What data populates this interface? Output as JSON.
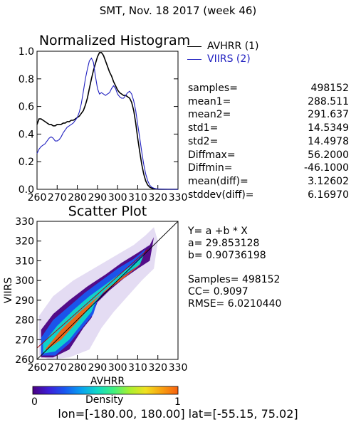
{
  "page_title": "SMT,  Nov. 18 2017 (week 46)",
  "histogram_stats": [
    {
      "label": "samples=",
      "value": "498152"
    },
    {
      "label": "mean1=",
      "value": "288.511"
    },
    {
      "label": "mean2=",
      "value": "291.637"
    },
    {
      "label": "std1=",
      "value": "14.5349"
    },
    {
      "label": "std2=",
      "value": "14.4978"
    },
    {
      "label": "Diffmax=",
      "value": "56.2000"
    },
    {
      "label": "Diffmin=",
      "value": "-46.1000"
    },
    {
      "label": "mean(diff)=",
      "value": "3.12602"
    },
    {
      "label": "stddev(diff)=",
      "value": "6.16970"
    }
  ],
  "regression": {
    "equation": "Y= a +b * X",
    "a_line": "a= 29.853128",
    "b_line": "b= 0.90736198",
    "samples_line": "Samples= 498152",
    "cc_line": "CC=  0.9097",
    "rmse_line": "RMSE= 6.0210440"
  },
  "colorbar": {
    "label": "Density",
    "min_label": "0",
    "max_label": "1",
    "colors": [
      "#4b0082",
      "#3c1fd8",
      "#1858f0",
      "#08a0f0",
      "#10d8c8",
      "#40f080",
      "#a8f030",
      "#f0e020",
      "#f8a010",
      "#f86010"
    ]
  },
  "footer": "lon=[-180.00, 180.00] lat=[-55.15, 75.02]",
  "colors": {
    "avhrr": "#000000",
    "viirs": "#2020c0"
  },
  "chart_data": [
    {
      "type": "line",
      "title": "Normalized Histogram",
      "xlim": [
        260,
        330
      ],
      "ylim": [
        0.0,
        1.0
      ],
      "xticks": [
        "260",
        "270",
        "280",
        "290",
        "300",
        "310",
        "320",
        "330"
      ],
      "yticks": [
        "0.0",
        "0.2",
        "0.4",
        "0.6",
        "0.8",
        "1.0"
      ],
      "series": [
        {
          "name": "AVHRR (1)",
          "color": "#000000",
          "x": [
            260,
            261,
            262,
            263,
            264,
            265,
            266,
            267,
            268,
            269,
            270,
            271,
            272,
            273,
            274,
            275,
            276,
            277,
            278,
            279,
            280,
            281,
            282,
            283,
            284,
            285,
            286,
            287,
            288,
            289,
            290,
            291,
            292,
            293,
            294,
            295,
            296,
            297,
            298,
            299,
            300,
            301,
            302,
            303,
            304,
            305,
            306,
            307,
            308,
            309,
            310,
            311,
            312,
            313,
            314,
            315,
            316,
            317,
            318,
            319,
            320,
            322,
            325,
            330
          ],
          "y": [
            0.47,
            0.51,
            0.51,
            0.5,
            0.49,
            0.48,
            0.47,
            0.47,
            0.46,
            0.46,
            0.47,
            0.47,
            0.47,
            0.48,
            0.48,
            0.49,
            0.49,
            0.5,
            0.5,
            0.51,
            0.52,
            0.53,
            0.55,
            0.57,
            0.61,
            0.66,
            0.73,
            0.8,
            0.86,
            0.91,
            0.96,
            0.99,
            0.99,
            0.97,
            0.93,
            0.89,
            0.85,
            0.82,
            0.78,
            0.75,
            0.72,
            0.7,
            0.69,
            0.68,
            0.68,
            0.67,
            0.66,
            0.63,
            0.57,
            0.48,
            0.37,
            0.27,
            0.18,
            0.11,
            0.06,
            0.03,
            0.015,
            0.008,
            0.004,
            0.002,
            0.001,
            0.0,
            0.0,
            0.0
          ]
        },
        {
          "name": "VIIRS (2)",
          "color": "#2020c0",
          "x": [
            260,
            261,
            262,
            263,
            264,
            265,
            266,
            267,
            268,
            269,
            270,
            271,
            272,
            273,
            274,
            275,
            276,
            277,
            278,
            279,
            280,
            281,
            282,
            283,
            284,
            285,
            286,
            287,
            288,
            289,
            290,
            291,
            292,
            293,
            294,
            295,
            296,
            297,
            298,
            299,
            300,
            301,
            302,
            303,
            304,
            305,
            306,
            307,
            308,
            309,
            310,
            311,
            312,
            313,
            314,
            315,
            316,
            317,
            318,
            319,
            320,
            322,
            325,
            330
          ],
          "y": [
            0.26,
            0.29,
            0.31,
            0.32,
            0.33,
            0.35,
            0.37,
            0.38,
            0.37,
            0.35,
            0.35,
            0.36,
            0.38,
            0.41,
            0.43,
            0.45,
            0.46,
            0.47,
            0.48,
            0.5,
            0.52,
            0.56,
            0.62,
            0.71,
            0.8,
            0.87,
            0.93,
            0.95,
            0.92,
            0.82,
            0.73,
            0.69,
            0.7,
            0.69,
            0.68,
            0.69,
            0.7,
            0.73,
            0.75,
            0.73,
            0.69,
            0.67,
            0.66,
            0.66,
            0.68,
            0.7,
            0.71,
            0.69,
            0.64,
            0.57,
            0.47,
            0.37,
            0.27,
            0.18,
            0.11,
            0.06,
            0.03,
            0.015,
            0.008,
            0.004,
            0.002,
            0.001,
            0.0,
            0.0
          ]
        }
      ]
    },
    {
      "type": "scatter",
      "title": "Scatter Plot",
      "xlabel": "AVHRR",
      "ylabel": "VIIRS",
      "xlim": [
        260,
        330
      ],
      "ylim": [
        260,
        330
      ],
      "xticks": [
        "260",
        "270",
        "280",
        "290",
        "300",
        "310",
        "320",
        "330"
      ],
      "yticks": [
        "260",
        "270",
        "280",
        "290",
        "300",
        "310",
        "320",
        "330"
      ],
      "one_to_one_line": [
        [
          260,
          260
        ],
        [
          330,
          330
        ]
      ],
      "density_bands": [
        {
          "density": 0.05,
          "x": [
            262,
            268,
            276,
            285,
            294,
            302,
            310,
            316,
            318,
            316,
            310,
            303,
            296,
            290,
            287,
            283,
            276,
            268,
            262
          ],
          "y": [
            275,
            283,
            290,
            297,
            303,
            309,
            314,
            318,
            322,
            310,
            306,
            301,
            295,
            289,
            281,
            276,
            265,
            261,
            261
          ]
        },
        {
          "density": 0.2,
          "x": [
            262,
            268,
            276,
            284,
            292,
            300,
            308,
            314,
            315,
            312,
            306,
            300,
            294,
            290,
            288,
            284,
            276,
            269,
            262
          ],
          "y": [
            271,
            280,
            287,
            294,
            300,
            306,
            311,
            316,
            319,
            311,
            306,
            301,
            296,
            290,
            283,
            278,
            268,
            262,
            262
          ]
        },
        {
          "density": 0.45,
          "x": [
            263,
            270,
            278,
            286,
            294,
            302,
            309,
            313,
            311,
            305,
            299,
            293,
            289,
            287,
            283,
            276,
            269,
            263
          ],
          "y": [
            268,
            277,
            285,
            292,
            298,
            304,
            309,
            313,
            308,
            304,
            299,
            294,
            289,
            284,
            279,
            270,
            264,
            263
          ]
        },
        {
          "density": 1.0,
          "x": [
            264,
            272,
            280,
            288,
            296,
            304,
            310,
            312,
            307,
            300,
            294,
            289,
            286,
            280,
            272,
            265,
            264
          ],
          "y": [
            265,
            275,
            283,
            290,
            296,
            302,
            307,
            309,
            305,
            300,
            295,
            290,
            286,
            279,
            270,
            265,
            265
          ]
        }
      ],
      "regression_line": {
        "a": 29.853128,
        "b": 0.90736198
      }
    }
  ]
}
